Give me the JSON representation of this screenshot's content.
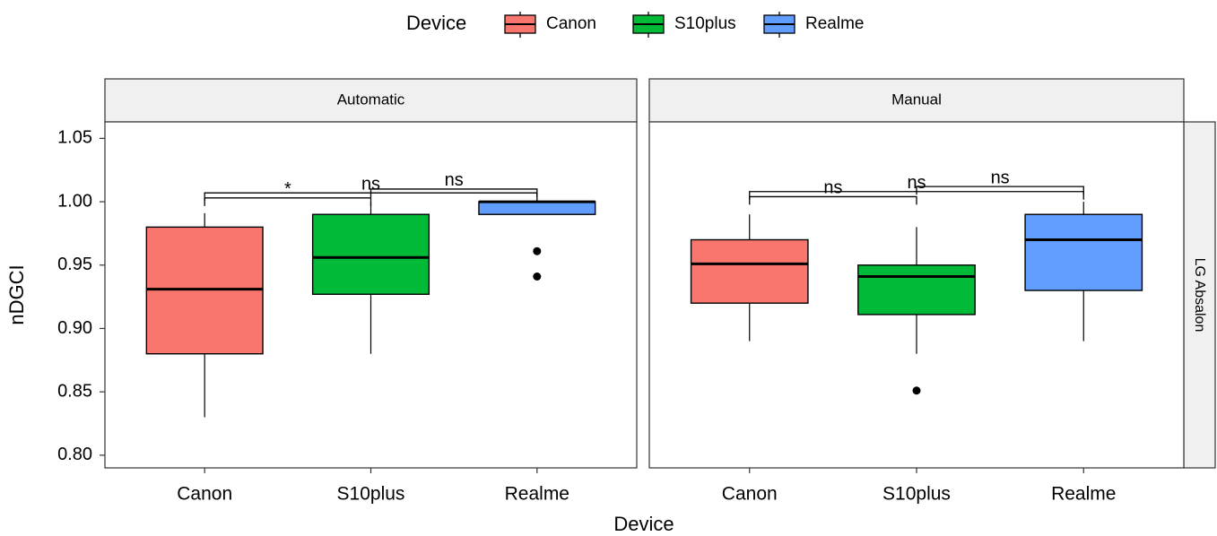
{
  "chart_data": {
    "type": "box",
    "x_label": "Device",
    "y_label": "nDGCI",
    "legend_title": "Device",
    "categories": [
      "Canon",
      "S10plus",
      "Realme"
    ],
    "colors": [
      "#F8766D",
      "#00BA38",
      "#619CFF"
    ],
    "row_label": "LG Absalon",
    "ylim": [
      0.79,
      1.063
    ],
    "yticks": [
      {
        "value": 0.8,
        "label": "0.80"
      },
      0.85,
      {
        "value": 0.9,
        "label": "0.90"
      },
      0.95,
      {
        "value": 1.0,
        "label": "1.00"
      },
      1.05
    ],
    "panels": [
      {
        "title": "Automatic",
        "boxes": [
          {
            "whislo": 0.83,
            "q1": 0.88,
            "med": 0.931,
            "q3": 0.98,
            "whishi": 0.991,
            "outliers": []
          },
          {
            "whislo": 0.88,
            "q1": 0.927,
            "med": 0.956,
            "q3": 0.99,
            "whishi": 1.0,
            "outliers": []
          },
          {
            "whislo": 0.99,
            "q1": 0.99,
            "med": 1.0,
            "q3": 1.0,
            "whishi": 1.0,
            "outliers": [
              0.961,
              0.941
            ]
          }
        ],
        "comparisons": [
          {
            "groups": [
              "Canon",
              "S10plus"
            ],
            "label": "*",
            "y": 1.003
          },
          {
            "groups": [
              "Canon",
              "Realme"
            ],
            "label": "ns",
            "y": 1.007
          },
          {
            "groups": [
              "S10plus",
              "Realme"
            ],
            "label": "ns",
            "y": 1.01
          }
        ]
      },
      {
        "title": "Manual",
        "boxes": [
          {
            "whislo": 0.89,
            "q1": 0.92,
            "med": 0.951,
            "q3": 0.97,
            "whishi": 0.99,
            "outliers": []
          },
          {
            "whislo": 0.88,
            "q1": 0.911,
            "med": 0.941,
            "q3": 0.95,
            "whishi": 0.98,
            "outliers": [
              0.851
            ]
          },
          {
            "whislo": 0.89,
            "q1": 0.93,
            "med": 0.97,
            "q3": 0.99,
            "whishi": 1.0,
            "outliers": []
          }
        ],
        "comparisons": [
          {
            "groups": [
              "Canon",
              "S10plus"
            ],
            "label": "ns",
            "y": 1.004
          },
          {
            "groups": [
              "Canon",
              "Realme"
            ],
            "label": "ns",
            "y": 1.008
          },
          {
            "groups": [
              "S10plus",
              "Realme"
            ],
            "label": "ns",
            "y": 1.012
          }
        ]
      }
    ]
  }
}
